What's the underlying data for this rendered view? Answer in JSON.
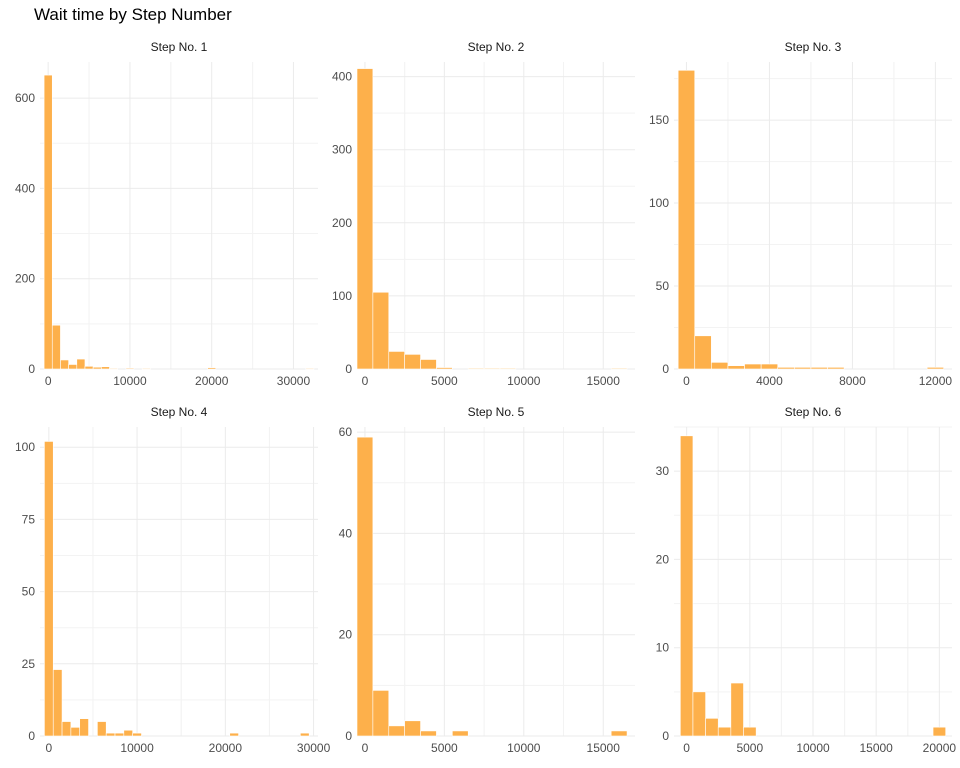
{
  "title": "Wait time by Step Number",
  "colors": {
    "bar": "#fdb04b",
    "bar_outline": "#ffffff",
    "grid": "#ebebeb",
    "text": "#4d4d4d"
  },
  "chart_data": {
    "type": "bar",
    "title": "Wait time by Step Number",
    "xlabel": "",
    "ylabel": "",
    "panels": [
      {
        "name": "Step No. 1",
        "x_ticks": [
          0,
          10000,
          20000,
          30000
        ],
        "x_tick_labels": [
          "0",
          "10000",
          "20000",
          "30000"
        ],
        "y_ticks": [
          0,
          200,
          400,
          600
        ],
        "y_tick_labels": [
          "0",
          "200",
          "400",
          "600"
        ],
        "xlim": [
          -1000,
          33000
        ],
        "ylim": [
          0,
          680
        ],
        "bin_width": 1000,
        "bins": [
          {
            "x": 0,
            "count": 651
          },
          {
            "x": 1000,
            "count": 97
          },
          {
            "x": 2000,
            "count": 20
          },
          {
            "x": 3000,
            "count": 10
          },
          {
            "x": 4000,
            "count": 22
          },
          {
            "x": 5000,
            "count": 6
          },
          {
            "x": 6000,
            "count": 4
          },
          {
            "x": 7000,
            "count": 5
          },
          {
            "x": 8000,
            "count": 1
          },
          {
            "x": 10000,
            "count": 2
          },
          {
            "x": 12000,
            "count": 1
          },
          {
            "x": 20000,
            "count": 3
          },
          {
            "x": 32000,
            "count": 1
          }
        ]
      },
      {
        "name": "Step No. 2",
        "x_ticks": [
          0,
          5000,
          10000,
          15000
        ],
        "x_tick_labels": [
          "0",
          "5000",
          "10000",
          "15000"
        ],
        "y_ticks": [
          0,
          100,
          200,
          300,
          400
        ],
        "y_tick_labels": [
          "0",
          "100",
          "200",
          "300",
          "400"
        ],
        "xlim": [
          -500,
          17000
        ],
        "ylim": [
          0,
          420
        ],
        "bin_width": 1000,
        "bins": [
          {
            "x": 0,
            "count": 411
          },
          {
            "x": 1000,
            "count": 105
          },
          {
            "x": 2000,
            "count": 24
          },
          {
            "x": 3000,
            "count": 20
          },
          {
            "x": 4000,
            "count": 13
          },
          {
            "x": 5000,
            "count": 2
          },
          {
            "x": 7000,
            "count": 1
          },
          {
            "x": 8000,
            "count": 1
          },
          {
            "x": 9000,
            "count": 1
          },
          {
            "x": 16000,
            "count": 1
          }
        ]
      },
      {
        "name": "Step No. 3",
        "x_ticks": [
          0,
          4000,
          8000,
          12000
        ],
        "x_tick_labels": [
          "0",
          "4000",
          "8000",
          "12000"
        ],
        "y_ticks": [
          0,
          50,
          100,
          150
        ],
        "y_tick_labels": [
          "0",
          "50",
          "100",
          "150"
        ],
        "xlim": [
          -600,
          12800
        ],
        "ylim": [
          0,
          185
        ],
        "bin_width": 800,
        "bins": [
          {
            "x": 0,
            "count": 180
          },
          {
            "x": 800,
            "count": 20
          },
          {
            "x": 1600,
            "count": 4
          },
          {
            "x": 2400,
            "count": 2
          },
          {
            "x": 3200,
            "count": 3
          },
          {
            "x": 4000,
            "count": 3
          },
          {
            "x": 4800,
            "count": 1
          },
          {
            "x": 5600,
            "count": 1
          },
          {
            "x": 6400,
            "count": 1
          },
          {
            "x": 7200,
            "count": 1
          },
          {
            "x": 12000,
            "count": 1
          }
        ]
      },
      {
        "name": "Step No. 4",
        "x_ticks": [
          0,
          10000,
          20000,
          30000
        ],
        "x_tick_labels": [
          "0",
          "10000",
          "20000",
          "30000"
        ],
        "y_ticks": [
          0,
          25,
          50,
          75,
          100
        ],
        "y_tick_labels": [
          "0",
          "25",
          "50",
          "75",
          "100"
        ],
        "xlim": [
          -1000,
          30500
        ],
        "ylim": [
          0,
          107
        ],
        "bin_width": 1000,
        "bins": [
          {
            "x": 0,
            "count": 102
          },
          {
            "x": 1000,
            "count": 23
          },
          {
            "x": 2000,
            "count": 5
          },
          {
            "x": 3000,
            "count": 3
          },
          {
            "x": 4000,
            "count": 6
          },
          {
            "x": 6000,
            "count": 5
          },
          {
            "x": 7000,
            "count": 1
          },
          {
            "x": 8000,
            "count": 1
          },
          {
            "x": 9000,
            "count": 2
          },
          {
            "x": 10000,
            "count": 1
          },
          {
            "x": 21000,
            "count": 1
          },
          {
            "x": 29000,
            "count": 1
          }
        ]
      },
      {
        "name": "Step No. 5",
        "x_ticks": [
          0,
          5000,
          10000,
          15000
        ],
        "x_tick_labels": [
          "0",
          "5000",
          "10000",
          "15000"
        ],
        "y_ticks": [
          0,
          20,
          40,
          60
        ],
        "y_tick_labels": [
          "0",
          "20",
          "40",
          "60"
        ],
        "xlim": [
          -500,
          17000
        ],
        "ylim": [
          0,
          61
        ],
        "bin_width": 1000,
        "bins": [
          {
            "x": 0,
            "count": 59
          },
          {
            "x": 1000,
            "count": 9
          },
          {
            "x": 2000,
            "count": 2
          },
          {
            "x": 3000,
            "count": 3
          },
          {
            "x": 4000,
            "count": 1
          },
          {
            "x": 6000,
            "count": 1
          },
          {
            "x": 16000,
            "count": 1
          }
        ]
      },
      {
        "name": "Step No. 6",
        "x_ticks": [
          0,
          5000,
          10000,
          15000,
          20000
        ],
        "x_tick_labels": [
          "0",
          "5000",
          "10000",
          "15000",
          "20000"
        ],
        "y_ticks": [
          0,
          10,
          20,
          30
        ],
        "y_tick_labels": [
          "0",
          "10",
          "20",
          "30"
        ],
        "xlim": [
          -1000,
          21000
        ],
        "ylim": [
          0,
          35
        ],
        "bin_width": 1000,
        "bins": [
          {
            "x": 0,
            "count": 34
          },
          {
            "x": 1000,
            "count": 5
          },
          {
            "x": 2000,
            "count": 2
          },
          {
            "x": 3000,
            "count": 1
          },
          {
            "x": 4000,
            "count": 6
          },
          {
            "x": 5000,
            "count": 1
          },
          {
            "x": 20000,
            "count": 1
          }
        ]
      }
    ]
  }
}
